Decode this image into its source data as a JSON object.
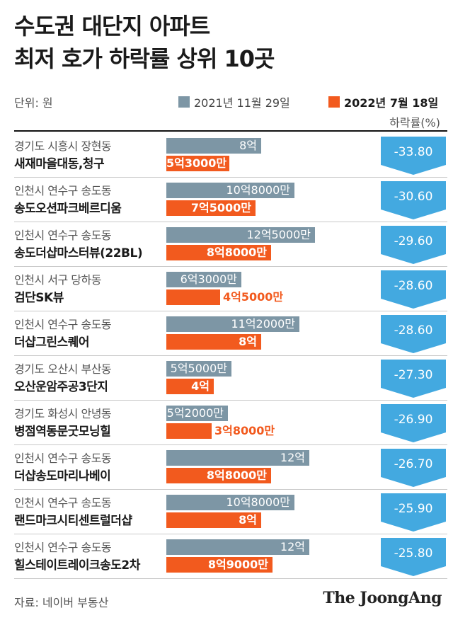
{
  "title_lines": [
    "수도권 대단지 아파트",
    "최저 호가 하락률 상위 10곳"
  ],
  "unit_label": "단위: 원",
  "legend": {
    "series1": "2021년 11월 29일",
    "series2": "2022년 7월 18일"
  },
  "decline_label": "하락률(%)",
  "source": "자료: 네이버 부동산",
  "logo": "The JoongAng",
  "colors": {
    "series1": "#7d96a5",
    "series2": "#f25a1e",
    "badge": "#43a9e0"
  },
  "chart_data": {
    "type": "bar",
    "orientation": "horizontal",
    "title": "수도권 대단지 아파트 최저 호가 하락률 상위 10곳",
    "unit": "원",
    "categories": [
      "경기도 시흥시 장현동 새재마을대동,청구",
      "인천시 연수구 송도동 송도오션파크베르디움",
      "인천시 연수구 송도동 송도더샵마스터뷰(22BL)",
      "인천시 서구 당하동 검단SK뷰",
      "인천시 연수구 송도동 더샵그린스퀘어",
      "경기도 오산시 부산동 오산운암주공3단지",
      "경기도 화성시 안녕동 병점역동문굿모닝힐",
      "인천시 연수구 송도동 더샵송도마리나베이",
      "인천시 연수구 송도동 랜드마크시티센트럴더샵",
      "인천시 연수구 송도동 힐스테이트레이크송도2차"
    ],
    "series": [
      {
        "name": "2021년 11월 29일",
        "values": [
          8.0,
          10.8,
          12.5,
          6.3,
          11.2,
          5.5,
          5.2,
          12.0,
          10.8,
          12.0
        ]
      },
      {
        "name": "2022년 7월 18일",
        "values": [
          5.3,
          7.5,
          8.8,
          4.5,
          8.0,
          4.0,
          3.8,
          8.8,
          8.0,
          8.9
        ]
      }
    ],
    "value_unit": "억원",
    "decline_rate_pct": [
      -33.8,
      -30.6,
      -29.6,
      -28.6,
      -28.6,
      -27.3,
      -26.9,
      -26.7,
      -25.9,
      -25.8
    ],
    "rows": [
      {
        "location": "경기도 시흥시 장현동",
        "name": "새재마을대동,청구",
        "price_2021": "8억",
        "price_2022": "5억3000만",
        "v2021": 8.0,
        "v2022": 5.3,
        "decline": "-33.80"
      },
      {
        "location": "인천시 연수구 송도동",
        "name": "송도오션파크베르디움",
        "price_2021": "10억8000만",
        "price_2022": "7억5000만",
        "v2021": 10.8,
        "v2022": 7.5,
        "decline": "-30.60"
      },
      {
        "location": "인천시 연수구 송도동",
        "name": "송도더샵마스터뷰(22BL)",
        "price_2021": "12억5000만",
        "price_2022": "8억8000만",
        "v2021": 12.5,
        "v2022": 8.8,
        "decline": "-29.60"
      },
      {
        "location": "인천시 서구 당하동",
        "name": "검단SK뷰",
        "price_2021": "6억3000만",
        "price_2022": "4억5000만",
        "v2021": 6.3,
        "v2022": 4.5,
        "decline": "-28.60"
      },
      {
        "location": "인천시 연수구 송도동",
        "name": "더샵그린스퀘어",
        "price_2021": "11억2000만",
        "price_2022": "8억",
        "v2021": 11.2,
        "v2022": 8.0,
        "decline": "-28.60"
      },
      {
        "location": "경기도 오산시 부산동",
        "name": "오산운암주공3단지",
        "price_2021": "5억5000만",
        "price_2022": "4억",
        "v2021": 5.5,
        "v2022": 4.0,
        "decline": "-27.30"
      },
      {
        "location": "경기도 화성시 안녕동",
        "name": "병점역동문굿모닝힐",
        "price_2021": "5억2000만",
        "price_2022": "3억8000만",
        "v2021": 5.2,
        "v2022": 3.8,
        "decline": "-26.90"
      },
      {
        "location": "인천시 연수구 송도동",
        "name": "더샵송도마리나베이",
        "price_2021": "12억",
        "price_2022": "8억8000만",
        "v2021": 12.0,
        "v2022": 8.8,
        "decline": "-26.70"
      },
      {
        "location": "인천시 연수구 송도동",
        "name": "랜드마크시티센트럴더샵",
        "price_2021": "10억8000만",
        "price_2022": "8억",
        "v2021": 10.8,
        "v2022": 8.0,
        "decline": "-25.90"
      },
      {
        "location": "인천시 연수구 송도동",
        "name": "힐스테이트레이크송도2차",
        "price_2021": "12억",
        "price_2022": "8억9000만",
        "v2021": 12.0,
        "v2022": 8.9,
        "decline": "-25.80"
      }
    ]
  }
}
